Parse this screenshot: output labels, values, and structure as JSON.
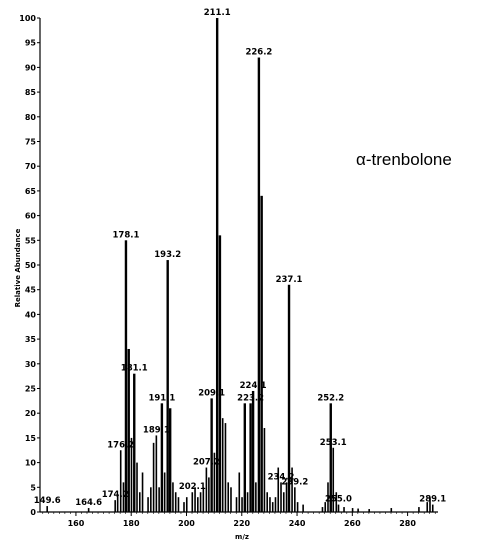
{
  "chart_data": {
    "type": "bar",
    "xlabel": "m/z",
    "ylabel": "Relative Abundance",
    "xlim": [
      147,
      291
    ],
    "ylim": [
      0,
      100
    ],
    "x_ticks": [
      160,
      180,
      200,
      220,
      240,
      260,
      280
    ],
    "x_tick_labels": [
      "160",
      "180",
      "200",
      "220",
      "240",
      "260",
      "280"
    ],
    "y_ticks": [
      0,
      5,
      10,
      15,
      20,
      25,
      30,
      35,
      40,
      45,
      50,
      55,
      60,
      65,
      70,
      75,
      80,
      85,
      90,
      95,
      100
    ],
    "y_tick_labels": [
      "0",
      "5",
      "10",
      "15",
      "20",
      "25",
      "30",
      "35",
      "40",
      "45",
      "50",
      "55",
      "60",
      "65",
      "70",
      "75",
      "80",
      "85",
      "90",
      "95",
      "100"
    ],
    "annotation": "α-trenbolone",
    "peaks": [
      {
        "x": 149.6,
        "y": 1.2,
        "label": "149.6"
      },
      {
        "x": 164.6,
        "y": 0.8,
        "label": "164.6"
      },
      {
        "x": 174.2,
        "y": 2.4,
        "label": "174.2"
      },
      {
        "x": 175.1,
        "y": 3.5,
        "label": ""
      },
      {
        "x": 176.2,
        "y": 12.5,
        "label": "176.2"
      },
      {
        "x": 177.2,
        "y": 6,
        "label": ""
      },
      {
        "x": 178.1,
        "y": 55,
        "label": "178.1"
      },
      {
        "x": 179.1,
        "y": 33,
        "label": ""
      },
      {
        "x": 180.1,
        "y": 15,
        "label": ""
      },
      {
        "x": 181.1,
        "y": 28,
        "label": "181.1"
      },
      {
        "x": 182.1,
        "y": 10,
        "label": ""
      },
      {
        "x": 183.1,
        "y": 4,
        "label": ""
      },
      {
        "x": 184.1,
        "y": 8,
        "label": ""
      },
      {
        "x": 186.1,
        "y": 3,
        "label": ""
      },
      {
        "x": 187.1,
        "y": 5,
        "label": ""
      },
      {
        "x": 188.1,
        "y": 14,
        "label": ""
      },
      {
        "x": 189.1,
        "y": 15.5,
        "label": "189.1"
      },
      {
        "x": 190.1,
        "y": 5,
        "label": ""
      },
      {
        "x": 191.1,
        "y": 22,
        "label": "191.1"
      },
      {
        "x": 192.1,
        "y": 8,
        "label": ""
      },
      {
        "x": 193.2,
        "y": 51,
        "label": "193.2"
      },
      {
        "x": 194.1,
        "y": 21,
        "label": ""
      },
      {
        "x": 195.1,
        "y": 6,
        "label": ""
      },
      {
        "x": 196.1,
        "y": 4,
        "label": ""
      },
      {
        "x": 197.1,
        "y": 3,
        "label": ""
      },
      {
        "x": 199.1,
        "y": 2,
        "label": ""
      },
      {
        "x": 200.1,
        "y": 3,
        "label": ""
      },
      {
        "x": 202.1,
        "y": 4,
        "label": "202.1"
      },
      {
        "x": 203.1,
        "y": 5,
        "label": ""
      },
      {
        "x": 204.1,
        "y": 3,
        "label": ""
      },
      {
        "x": 205.1,
        "y": 4,
        "label": ""
      },
      {
        "x": 206.1,
        "y": 5,
        "label": ""
      },
      {
        "x": 207.2,
        "y": 9,
        "label": "207.2"
      },
      {
        "x": 208.1,
        "y": 7,
        "label": ""
      },
      {
        "x": 209.1,
        "y": 23,
        "label": "209.1"
      },
      {
        "x": 210.1,
        "y": 12,
        "label": ""
      },
      {
        "x": 211.1,
        "y": 100,
        "label": "211.1"
      },
      {
        "x": 212.1,
        "y": 56,
        "label": ""
      },
      {
        "x": 213.1,
        "y": 19,
        "label": ""
      },
      {
        "x": 214.1,
        "y": 18,
        "label": ""
      },
      {
        "x": 215.1,
        "y": 6,
        "label": ""
      },
      {
        "x": 216.1,
        "y": 5,
        "label": ""
      },
      {
        "x": 218.1,
        "y": 3,
        "label": ""
      },
      {
        "x": 219.1,
        "y": 8,
        "label": ""
      },
      {
        "x": 220.1,
        "y": 3,
        "label": ""
      },
      {
        "x": 221.1,
        "y": 22,
        "label": ""
      },
      {
        "x": 222.1,
        "y": 4,
        "label": ""
      },
      {
        "x": 223.2,
        "y": 22,
        "label": "223.2"
      },
      {
        "x": 224.1,
        "y": 24.5,
        "label": "224.1"
      },
      {
        "x": 225.1,
        "y": 6,
        "label": ""
      },
      {
        "x": 226.2,
        "y": 92,
        "label": "226.2"
      },
      {
        "x": 227.2,
        "y": 64,
        "label": ""
      },
      {
        "x": 228.2,
        "y": 17,
        "label": ""
      },
      {
        "x": 229.2,
        "y": 4,
        "label": ""
      },
      {
        "x": 230.2,
        "y": 3,
        "label": ""
      },
      {
        "x": 231.2,
        "y": 2,
        "label": ""
      },
      {
        "x": 232.2,
        "y": 3,
        "label": ""
      },
      {
        "x": 233.2,
        "y": 9,
        "label": ""
      },
      {
        "x": 234.2,
        "y": 6,
        "label": "234.2"
      },
      {
        "x": 235.2,
        "y": 4,
        "label": ""
      },
      {
        "x": 236.2,
        "y": 6,
        "label": ""
      },
      {
        "x": 237.1,
        "y": 46,
        "label": "237.1"
      },
      {
        "x": 238.2,
        "y": 9,
        "label": ""
      },
      {
        "x": 239.2,
        "y": 5,
        "label": "239.2"
      },
      {
        "x": 240.2,
        "y": 2,
        "label": ""
      },
      {
        "x": 242.2,
        "y": 1.5,
        "label": ""
      },
      {
        "x": 249.2,
        "y": 1,
        "label": ""
      },
      {
        "x": 250.2,
        "y": 2,
        "label": ""
      },
      {
        "x": 251.2,
        "y": 6,
        "label": ""
      },
      {
        "x": 252.2,
        "y": 22,
        "label": "252.2"
      },
      {
        "x": 253.1,
        "y": 13,
        "label": "253.1"
      },
      {
        "x": 254.2,
        "y": 4,
        "label": ""
      },
      {
        "x": 255.0,
        "y": 1.5,
        "label": "255.0"
      },
      {
        "x": 257.0,
        "y": 1,
        "label": ""
      },
      {
        "x": 260.1,
        "y": 0.8,
        "label": ""
      },
      {
        "x": 262.1,
        "y": 0.7,
        "label": ""
      },
      {
        "x": 266.1,
        "y": 0.6,
        "label": ""
      },
      {
        "x": 274.1,
        "y": 0.8,
        "label": ""
      },
      {
        "x": 284.1,
        "y": 1,
        "label": ""
      },
      {
        "x": 287.1,
        "y": 2,
        "label": ""
      },
      {
        "x": 288.1,
        "y": 3,
        "label": ""
      },
      {
        "x": 289.1,
        "y": 1.5,
        "label": "289.1"
      }
    ]
  }
}
